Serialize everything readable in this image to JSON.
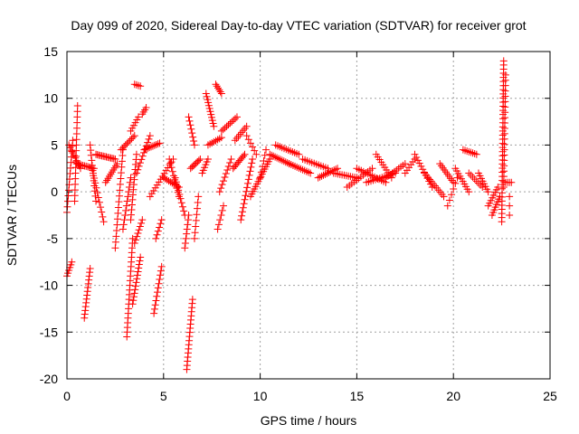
{
  "chart_data": {
    "type": "scatter",
    "title": "Day 099 of 2020, Sidereal Day-to-day VTEC variation (SDTVAR) for receiver grot",
    "xlabel": "GPS time / hours",
    "ylabel": "SDTVAR / TECUs",
    "xlim": [
      0,
      25
    ],
    "ylim": [
      -20,
      15
    ],
    "xticks": [
      0,
      5,
      10,
      15,
      20,
      25
    ],
    "yticks": [
      15,
      10,
      5,
      0,
      -5,
      -10,
      -15,
      -20
    ],
    "grid": true,
    "marker": "+",
    "marker_color": "#ff0000",
    "series": [
      {
        "name": "SDTVAR",
        "tracks": [
          {
            "x0": 0.0,
            "y0": -2.2,
            "x1": 0.3,
            "y1": 5.5,
            "n": 14
          },
          {
            "x0": 0.0,
            "y0": -9.0,
            "x1": 0.25,
            "y1": -7.5,
            "n": 6
          },
          {
            "x0": 0.1,
            "y0": 5.0,
            "x1": 0.7,
            "y1": 2.5,
            "n": 10
          },
          {
            "x0": 0.4,
            "y0": -1.0,
            "x1": 0.55,
            "y1": 9.2,
            "n": 18
          },
          {
            "x0": 0.5,
            "y0": 3.0,
            "x1": 1.4,
            "y1": 2.5,
            "n": 12
          },
          {
            "x0": 0.9,
            "y0": -13.5,
            "x1": 1.2,
            "y1": -8.2,
            "n": 14
          },
          {
            "x0": 1.2,
            "y0": 5.0,
            "x1": 1.5,
            "y1": -1.0,
            "n": 12
          },
          {
            "x0": 1.3,
            "y0": 2.5,
            "x1": 1.9,
            "y1": -3.2,
            "n": 12
          },
          {
            "x0": 1.5,
            "y0": 4.0,
            "x1": 2.5,
            "y1": 3.5,
            "n": 14
          },
          {
            "x0": 2.0,
            "y0": 1.0,
            "x1": 2.6,
            "y1": 3.0,
            "n": 10
          },
          {
            "x0": 2.5,
            "y0": -6.0,
            "x1": 2.9,
            "y1": 4.5,
            "n": 18
          },
          {
            "x0": 2.9,
            "y0": -4.0,
            "x1": 3.3,
            "y1": 1.5,
            "n": 12
          },
          {
            "x0": 2.8,
            "y0": 4.5,
            "x1": 3.5,
            "y1": 6.0,
            "n": 10
          },
          {
            "x0": 3.1,
            "y0": -15.5,
            "x1": 3.4,
            "y1": -5.0,
            "n": 22
          },
          {
            "x0": 3.3,
            "y0": -3.0,
            "x1": 3.6,
            "y1": 4.0,
            "n": 14
          },
          {
            "x0": 3.3,
            "y0": 6.5,
            "x1": 3.7,
            "y1": 8.0,
            "n": 6
          },
          {
            "x0": 3.4,
            "y0": -12.0,
            "x1": 3.8,
            "y1": -7.0,
            "n": 14
          },
          {
            "x0": 3.5,
            "y0": -5.5,
            "x1": 3.9,
            "y1": -3.0,
            "n": 8
          },
          {
            "x0": 3.5,
            "y0": 11.5,
            "x1": 3.8,
            "y1": 11.3,
            "n": 4
          },
          {
            "x0": 3.6,
            "y0": 2.0,
            "x1": 4.3,
            "y1": 6.0,
            "n": 12
          },
          {
            "x0": 3.9,
            "y0": 8.3,
            "x1": 4.1,
            "y1": 9.0,
            "n": 4
          },
          {
            "x0": 4.0,
            "y0": 4.5,
            "x1": 4.8,
            "y1": 5.2,
            "n": 10
          },
          {
            "x0": 4.5,
            "y0": -13.0,
            "x1": 4.9,
            "y1": -8.0,
            "n": 12
          },
          {
            "x0": 4.6,
            "y0": -5.0,
            "x1": 4.9,
            "y1": -3.0,
            "n": 6
          },
          {
            "x0": 4.3,
            "y0": -0.5,
            "x1": 5.5,
            "y1": 3.5,
            "n": 14
          },
          {
            "x0": 5.0,
            "y0": 1.5,
            "x1": 5.8,
            "y1": 0.5,
            "n": 10
          },
          {
            "x0": 5.3,
            "y0": 3.5,
            "x1": 5.8,
            "y1": -0.5,
            "n": 10
          },
          {
            "x0": 5.6,
            "y0": 1.5,
            "x1": 6.1,
            "y1": -2.5,
            "n": 10
          },
          {
            "x0": 6.2,
            "y0": -19.0,
            "x1": 6.5,
            "y1": -11.5,
            "n": 18
          },
          {
            "x0": 6.1,
            "y0": -6.0,
            "x1": 6.3,
            "y1": -2.5,
            "n": 8
          },
          {
            "x0": 6.3,
            "y0": 8.0,
            "x1": 6.6,
            "y1": 5.0,
            "n": 8
          },
          {
            "x0": 6.4,
            "y0": 2.5,
            "x1": 6.9,
            "y1": 3.5,
            "n": 8
          },
          {
            "x0": 6.6,
            "y0": -5.0,
            "x1": 6.8,
            "y1": -0.5,
            "n": 8
          },
          {
            "x0": 7.0,
            "y0": 2.0,
            "x1": 7.3,
            "y1": 3.5,
            "n": 6
          },
          {
            "x0": 7.2,
            "y0": 10.5,
            "x1": 7.6,
            "y1": 7.0,
            "n": 12
          },
          {
            "x0": 7.3,
            "y0": 5.0,
            "x1": 8.0,
            "y1": 5.8,
            "n": 8
          },
          {
            "x0": 7.7,
            "y0": 11.5,
            "x1": 8.0,
            "y1": 10.5,
            "n": 6
          },
          {
            "x0": 7.8,
            "y0": -4.0,
            "x1": 8.1,
            "y1": -1.5,
            "n": 6
          },
          {
            "x0": 7.9,
            "y0": 0.0,
            "x1": 8.5,
            "y1": 3.5,
            "n": 10
          },
          {
            "x0": 8.0,
            "y0": 6.5,
            "x1": 8.8,
            "y1": 8.0,
            "n": 10
          },
          {
            "x0": 8.6,
            "y0": 2.5,
            "x1": 9.2,
            "y1": 4.0,
            "n": 10
          },
          {
            "x0": 8.7,
            "y0": 5.5,
            "x1": 9.3,
            "y1": 7.0,
            "n": 8
          },
          {
            "x0": 9.0,
            "y0": -3.0,
            "x1": 9.6,
            "y1": 3.5,
            "n": 16
          },
          {
            "x0": 9.3,
            "y0": 6.0,
            "x1": 9.8,
            "y1": 4.0,
            "n": 6
          },
          {
            "x0": 9.5,
            "y0": -0.5,
            "x1": 10.5,
            "y1": 3.5,
            "n": 16
          },
          {
            "x0": 10.0,
            "y0": 1.5,
            "x1": 10.3,
            "y1": 4.5,
            "n": 6
          },
          {
            "x0": 10.5,
            "y0": 4.0,
            "x1": 11.5,
            "y1": 3.0,
            "n": 12
          },
          {
            "x0": 10.8,
            "y0": 5.0,
            "x1": 12.0,
            "y1": 4.0,
            "n": 12
          },
          {
            "x0": 11.5,
            "y0": 3.0,
            "x1": 12.6,
            "y1": 2.0,
            "n": 12
          },
          {
            "x0": 12.2,
            "y0": 3.5,
            "x1": 13.5,
            "y1": 2.5,
            "n": 12
          },
          {
            "x0": 13.0,
            "y0": 1.5,
            "x1": 14.0,
            "y1": 2.5,
            "n": 12
          },
          {
            "x0": 13.8,
            "y0": 2.0,
            "x1": 15.0,
            "y1": 1.5,
            "n": 12
          },
          {
            "x0": 14.5,
            "y0": 0.5,
            "x1": 15.8,
            "y1": 2.5,
            "n": 12
          },
          {
            "x0": 15.0,
            "y0": 2.5,
            "x1": 16.5,
            "y1": 1.0,
            "n": 14
          },
          {
            "x0": 15.5,
            "y0": 1.0,
            "x1": 17.0,
            "y1": 2.0,
            "n": 14
          },
          {
            "x0": 16.0,
            "y0": 4.0,
            "x1": 16.8,
            "y1": 1.5,
            "n": 10
          },
          {
            "x0": 16.5,
            "y0": 1.5,
            "x1": 17.5,
            "y1": 3.0,
            "n": 10
          },
          {
            "x0": 17.5,
            "y0": 2.0,
            "x1": 18.0,
            "y1": 3.5,
            "n": 6
          },
          {
            "x0": 18.0,
            "y0": 4.0,
            "x1": 18.9,
            "y1": 0.5,
            "n": 12
          },
          {
            "x0": 18.5,
            "y0": 2.0,
            "x1": 19.5,
            "y1": -0.5,
            "n": 12
          },
          {
            "x0": 19.3,
            "y0": 3.0,
            "x1": 20.0,
            "y1": 1.0,
            "n": 10
          },
          {
            "x0": 19.7,
            "y0": -1.5,
            "x1": 20.2,
            "y1": 1.5,
            "n": 6
          },
          {
            "x0": 20.1,
            "y0": 2.5,
            "x1": 20.8,
            "y1": 0.0,
            "n": 10
          },
          {
            "x0": 20.5,
            "y0": 4.5,
            "x1": 21.2,
            "y1": 4.0,
            "n": 8
          },
          {
            "x0": 20.8,
            "y0": 2.0,
            "x1": 21.5,
            "y1": 0.5,
            "n": 8
          },
          {
            "x0": 21.3,
            "y0": 2.0,
            "x1": 21.8,
            "y1": 0.0,
            "n": 8
          },
          {
            "x0": 21.8,
            "y0": -1.5,
            "x1": 22.3,
            "y1": 0.5,
            "n": 8
          },
          {
            "x0": 22.0,
            "y0": -2.5,
            "x1": 22.4,
            "y1": -0.5,
            "n": 8
          },
          {
            "x0": 22.5,
            "y0": -3.2,
            "x1": 22.6,
            "y1": 14.0,
            "n": 40
          },
          {
            "x0": 22.6,
            "y0": 0.5,
            "x1": 22.7,
            "y1": 12.5,
            "n": 22
          },
          {
            "x0": 22.7,
            "y0": 1.0,
            "x1": 23.0,
            "y1": 1.0,
            "n": 4
          },
          {
            "x0": 22.9,
            "y0": -2.5,
            "x1": 22.9,
            "y1": -0.5,
            "n": 3
          }
        ]
      }
    ]
  }
}
